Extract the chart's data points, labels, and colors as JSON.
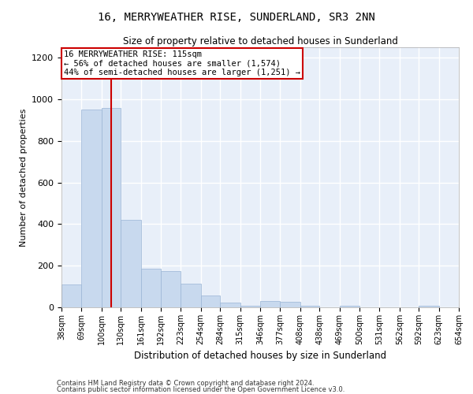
{
  "title": "16, MERRYWEATHER RISE, SUNDERLAND, SR3 2NN",
  "subtitle": "Size of property relative to detached houses in Sunderland",
  "xlabel": "Distribution of detached houses by size in Sunderland",
  "ylabel": "Number of detached properties",
  "bar_color": "#c8d9ee",
  "bar_edge_color": "#9ab5d5",
  "background_color": "#e8eff9",
  "grid_color": "#ffffff",
  "annotation_box_color": "#cc0000",
  "vline_color": "#cc0000",
  "footer_line1": "Contains HM Land Registry data © Crown copyright and database right 2024.",
  "footer_line2": "Contains public sector information licensed under the Open Government Licence v3.0.",
  "annotation_line1": "16 MERRYWEATHER RISE: 115sqm",
  "annotation_line2": "← 56% of detached houses are smaller (1,574)",
  "annotation_line3": "44% of semi-detached houses are larger (1,251) →",
  "property_size_sqm": 115,
  "bin_edges": [
    38,
    69,
    100,
    130,
    161,
    192,
    223,
    254,
    284,
    315,
    346,
    377,
    408,
    438,
    469,
    500,
    531,
    562,
    592,
    623,
    654
  ],
  "bar_heights": [
    110,
    950,
    960,
    420,
    185,
    175,
    115,
    55,
    22,
    8,
    30,
    28,
    8,
    0,
    8,
    0,
    0,
    0,
    8,
    0,
    8
  ],
  "ylim": [
    0,
    1250
  ],
  "yticks": [
    0,
    200,
    400,
    600,
    800,
    1000,
    1200
  ]
}
